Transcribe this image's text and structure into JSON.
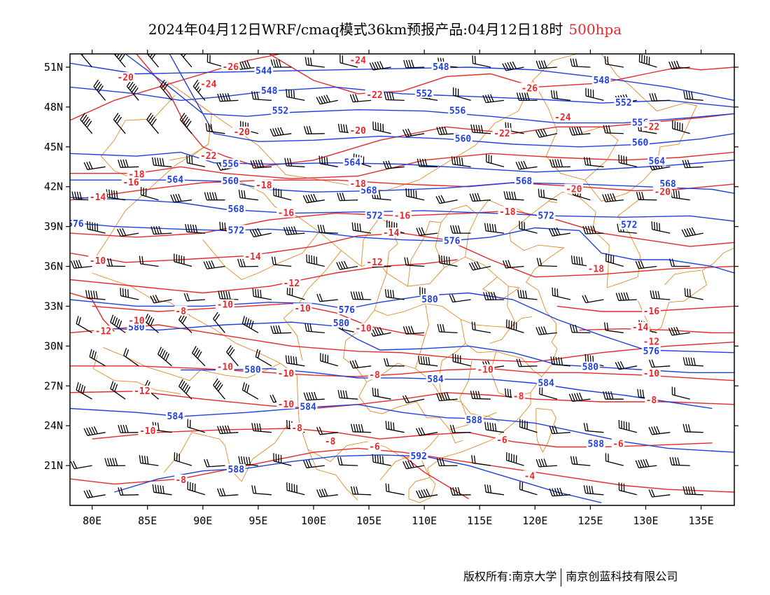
{
  "title": {
    "text": "2024年04月12日WRF/cmaq模式36km预报产品:04月12日18时",
    "level": "500hpa"
  },
  "colors": {
    "height_contour": "#1f3fe0",
    "temperature_contour": "#e8282b",
    "coastline_border": "#e08a2a",
    "wind_barb": "#000000"
  },
  "map": {
    "lon_range": [
      78,
      138
    ],
    "lat_range": [
      18,
      52
    ],
    "lon_ticks": [
      "80E",
      "85E",
      "90E",
      "95E",
      "100E",
      "105E",
      "110E",
      "115E",
      "120E",
      "125E",
      "130E",
      "135E"
    ],
    "lat_ticks": [
      "51N",
      "48N",
      "45N",
      "42N",
      "39N",
      "36N",
      "33N",
      "30N",
      "27N",
      "24N",
      "21N"
    ],
    "height_labels": [
      {
        "t": "544",
        "lon": 95.5,
        "lat": 50.7
      },
      {
        "t": "548",
        "lon": 96,
        "lat": 49.2
      },
      {
        "t": "548",
        "lon": 111.5,
        "lat": 51
      },
      {
        "t": "548",
        "lon": 126,
        "lat": 50
      },
      {
        "t": "552",
        "lon": 97,
        "lat": 47.7
      },
      {
        "t": "552",
        "lon": 110,
        "lat": 49
      },
      {
        "t": "552",
        "lon": 128,
        "lat": 48.3
      },
      {
        "t": "556",
        "lon": 113,
        "lat": 47.7
      },
      {
        "t": "556",
        "lon": 129.5,
        "lat": 46.8
      },
      {
        "t": "560",
        "lon": 113.5,
        "lat": 45.6
      },
      {
        "t": "560",
        "lon": 129.5,
        "lat": 45.3
      },
      {
        "t": "564",
        "lon": 103.5,
        "lat": 43.8
      },
      {
        "t": "564",
        "lon": 131,
        "lat": 43.9
      },
      {
        "t": "556",
        "lon": 92.5,
        "lat": 43.7
      },
      {
        "t": "560",
        "lon": 92.5,
        "lat": 42.4
      },
      {
        "t": "564",
        "lon": 87.5,
        "lat": 42.5
      },
      {
        "t": "568",
        "lon": 105,
        "lat": 41.7
      },
      {
        "t": "568",
        "lon": 119,
        "lat": 42.4
      },
      {
        "t": "568",
        "lon": 132,
        "lat": 42.2
      },
      {
        "t": "568",
        "lon": 93,
        "lat": 40.3
      },
      {
        "t": "572",
        "lon": 105.5,
        "lat": 39.8
      },
      {
        "t": "572",
        "lon": 121,
        "lat": 39.8
      },
      {
        "t": "572",
        "lon": 128.5,
        "lat": 39.1
      },
      {
        "t": "576",
        "lon": 78.5,
        "lat": 39.2
      },
      {
        "t": "572",
        "lon": 93,
        "lat": 38.7
      },
      {
        "t": "576",
        "lon": 112.5,
        "lat": 37.9
      },
      {
        "t": "576",
        "lon": 103,
        "lat": 32.7
      },
      {
        "t": "580",
        "lon": 110.5,
        "lat": 33.5
      },
      {
        "t": "580",
        "lon": 102.5,
        "lat": 31.7
      },
      {
        "t": "580",
        "lon": 84,
        "lat": 31.4
      },
      {
        "t": "580",
        "lon": 94.5,
        "lat": 28.2
      },
      {
        "t": "580",
        "lon": 125,
        "lat": 28.4
      },
      {
        "t": "584",
        "lon": 111,
        "lat": 27.5
      },
      {
        "t": "584",
        "lon": 121,
        "lat": 27.2
      },
      {
        "t": "584",
        "lon": 99.5,
        "lat": 25.4
      },
      {
        "t": "584",
        "lon": 87.5,
        "lat": 24.7
      },
      {
        "t": "588",
        "lon": 114.5,
        "lat": 24.4
      },
      {
        "t": "588",
        "lon": 125.5,
        "lat": 22.6
      },
      {
        "t": "588",
        "lon": 93,
        "lat": 20.7
      },
      {
        "t": "592",
        "lon": 109.5,
        "lat": 21.7
      },
      {
        "t": "576",
        "lon": 130.5,
        "lat": 29.6
      }
    ],
    "temperature_labels": [
      {
        "t": "-26",
        "lon": 92.5,
        "lat": 51
      },
      {
        "t": "-24",
        "lon": 104,
        "lat": 51.5
      },
      {
        "t": "-20",
        "lon": 83,
        "lat": 50.2
      },
      {
        "t": "-24",
        "lon": 90.5,
        "lat": 49.7
      },
      {
        "t": "-22",
        "lon": 105.5,
        "lat": 48.9
      },
      {
        "t": "-26",
        "lon": 119.5,
        "lat": 49.4
      },
      {
        "t": "-24",
        "lon": 122.5,
        "lat": 47.2
      },
      {
        "t": "-22",
        "lon": 130.5,
        "lat": 46.5
      },
      {
        "t": "-20",
        "lon": 93.5,
        "lat": 46.1
      },
      {
        "t": "-20",
        "lon": 104,
        "lat": 46.2
      },
      {
        "t": "-22",
        "lon": 117,
        "lat": 46
      },
      {
        "t": "-22",
        "lon": 90.5,
        "lat": 44.3
      },
      {
        "t": "-18",
        "lon": 84,
        "lat": 42.9
      },
      {
        "t": "-16",
        "lon": 83.5,
        "lat": 42.3
      },
      {
        "t": "-18",
        "lon": 95.5,
        "lat": 42.1
      },
      {
        "t": "-18",
        "lon": 104,
        "lat": 42.2
      },
      {
        "t": "-20",
        "lon": 123.5,
        "lat": 41.8
      },
      {
        "t": "-20",
        "lon": 131.5,
        "lat": 41.6
      },
      {
        "t": "-14",
        "lon": 80.5,
        "lat": 41.2
      },
      {
        "t": "-16",
        "lon": 97.5,
        "lat": 40
      },
      {
        "t": "-16",
        "lon": 108,
        "lat": 39.8
      },
      {
        "t": "-18",
        "lon": 117.5,
        "lat": 40.1
      },
      {
        "t": "-14",
        "lon": 107,
        "lat": 38.5
      },
      {
        "t": "-14",
        "lon": 94.5,
        "lat": 36.7
      },
      {
        "t": "-10",
        "lon": 80.5,
        "lat": 36.4
      },
      {
        "t": "-12",
        "lon": 105.5,
        "lat": 36.3
      },
      {
        "t": "-18",
        "lon": 125.5,
        "lat": 35.8
      },
      {
        "t": "-12",
        "lon": 98,
        "lat": 34.7
      },
      {
        "t": "-10",
        "lon": 92,
        "lat": 33.1
      },
      {
        "t": "-10",
        "lon": 99,
        "lat": 32.8
      },
      {
        "t": "-8",
        "lon": 88,
        "lat": 32.6
      },
      {
        "t": "-10",
        "lon": 84,
        "lat": 31.9
      },
      {
        "t": "-12",
        "lon": 81,
        "lat": 31.1
      },
      {
        "t": "-10",
        "lon": 104.5,
        "lat": 31.3
      },
      {
        "t": "-16",
        "lon": 130.5,
        "lat": 32.6
      },
      {
        "t": "-14",
        "lon": 129.5,
        "lat": 31.4
      },
      {
        "t": "-12",
        "lon": 130.5,
        "lat": 30.3
      },
      {
        "t": "-10",
        "lon": 92,
        "lat": 28.4
      },
      {
        "t": "-10",
        "lon": 97.5,
        "lat": 27.9
      },
      {
        "t": "-8",
        "lon": 105.5,
        "lat": 27.8
      },
      {
        "t": "-10",
        "lon": 115.5,
        "lat": 28.2
      },
      {
        "t": "-10",
        "lon": 130.5,
        "lat": 27.9
      },
      {
        "t": "-12",
        "lon": 84.5,
        "lat": 26.6
      },
      {
        "t": "-8",
        "lon": 118.5,
        "lat": 26.2
      },
      {
        "t": "-8",
        "lon": 130.5,
        "lat": 25.9
      },
      {
        "t": "-10",
        "lon": 97.5,
        "lat": 25.6
      },
      {
        "t": "-10",
        "lon": 85,
        "lat": 23.6
      },
      {
        "t": "-8",
        "lon": 98.5,
        "lat": 23.8
      },
      {
        "t": "-8",
        "lon": 101.5,
        "lat": 22.8
      },
      {
        "t": "-6",
        "lon": 105.5,
        "lat": 22.4
      },
      {
        "t": "-6",
        "lon": 117,
        "lat": 22.9
      },
      {
        "t": "-6",
        "lon": 127.5,
        "lat": 22.6
      },
      {
        "t": "-8",
        "lon": 88,
        "lat": 19.9
      },
      {
        "t": "-4",
        "lon": 119.5,
        "lat": 20.2
      }
    ]
  },
  "footer": {
    "owner": "版权所有:南京大学",
    "partner": "南京创蓝科技有限公司"
  }
}
